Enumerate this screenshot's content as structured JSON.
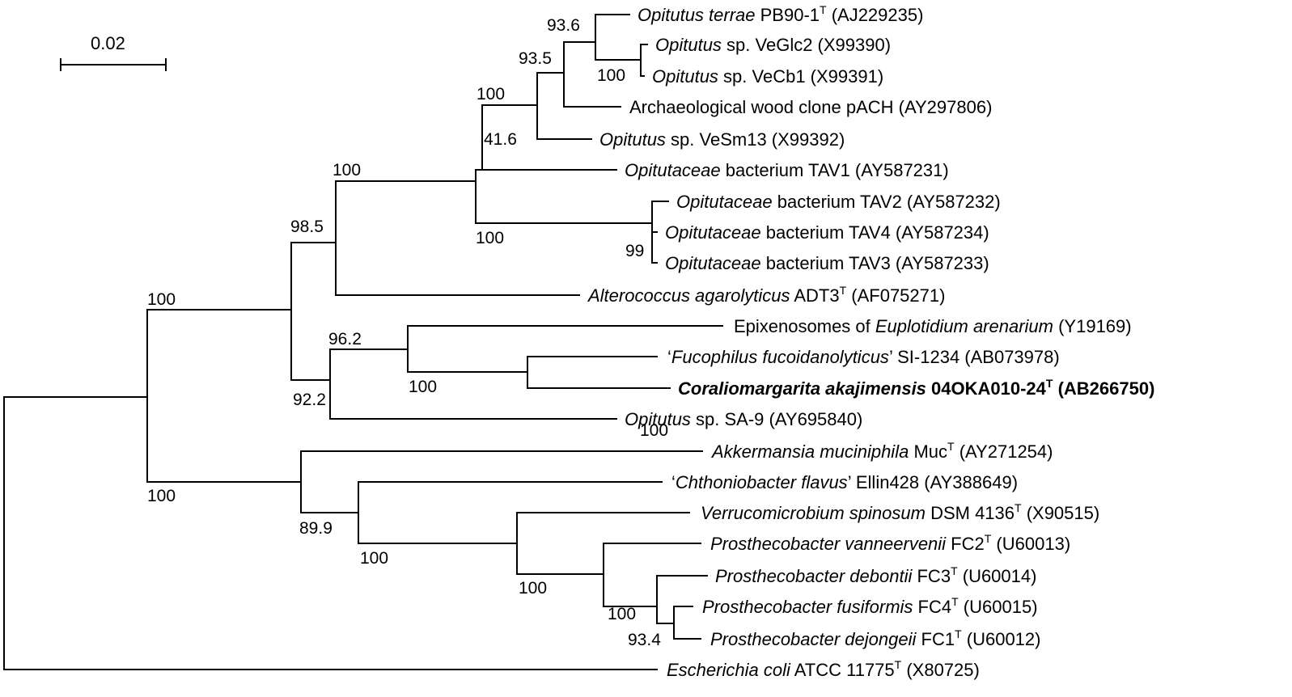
{
  "scale_bar": {
    "label": "0.02"
  },
  "taxa": [
    {
      "id": "t1",
      "segments": [
        {
          "t": "Opitutus terrae",
          "i": true
        },
        {
          "t": " PB90-1"
        },
        {
          "t": "T",
          "sup": true
        },
        {
          "t": " (AJ229235)"
        }
      ]
    },
    {
      "id": "t2",
      "segments": [
        {
          "t": "Opitutus",
          "i": true
        },
        {
          "t": " sp. VeGlc2 (X99390)"
        }
      ]
    },
    {
      "id": "t3",
      "segments": [
        {
          "t": "Opitutus",
          "i": true
        },
        {
          "t": " sp. VeCb1 (X99391)"
        }
      ]
    },
    {
      "id": "t4",
      "segments": [
        {
          "t": "Archaeological wood clone pACH (AY297806)"
        }
      ]
    },
    {
      "id": "t5",
      "segments": [
        {
          "t": "Opitutus",
          "i": true
        },
        {
          "t": " sp. VeSm13 (X99392)"
        }
      ]
    },
    {
      "id": "t6",
      "segments": [
        {
          "t": "Opitutaceae",
          "i": true
        },
        {
          "t": " bacterium TAV1 (AY587231)"
        }
      ]
    },
    {
      "id": "t7",
      "segments": [
        {
          "t": "Opitutaceae",
          "i": true
        },
        {
          "t": " bacterium TAV2 (AY587232)"
        }
      ]
    },
    {
      "id": "t8",
      "segments": [
        {
          "t": "Opitutaceae",
          "i": true
        },
        {
          "t": " bacterium TAV4 (AY587234)"
        }
      ]
    },
    {
      "id": "t9",
      "segments": [
        {
          "t": "Opitutaceae",
          "i": true
        },
        {
          "t": " bacterium TAV3 (AY587233)"
        }
      ]
    },
    {
      "id": "t10",
      "segments": [
        {
          "t": "Alterococcus agarolyticus",
          "i": true
        },
        {
          "t": " ADT3"
        },
        {
          "t": "T",
          "sup": true
        },
        {
          "t": " (AF075271)"
        }
      ]
    },
    {
      "id": "t11",
      "segments": [
        {
          "t": "Epixenosomes of "
        },
        {
          "t": "Euplotidium arenarium",
          "i": true
        },
        {
          "t": " (Y19169)"
        }
      ]
    },
    {
      "id": "t12",
      "segments": [
        {
          "t": "‘"
        },
        {
          "t": "Fucophilus fucoidanolyticus",
          "i": true
        },
        {
          "t": "’ SI-1234 (AB073978)"
        }
      ]
    },
    {
      "id": "t13",
      "bold": true,
      "segments": [
        {
          "t": "Coraliomargarita akajimensis",
          "i": true
        },
        {
          "t": " 04OKA010-24"
        },
        {
          "t": "T",
          "sup": true
        },
        {
          "t": " (AB266750)"
        }
      ]
    },
    {
      "id": "t14",
      "segments": [
        {
          "t": "Opitutus",
          "i": true
        },
        {
          "t": " sp. SA-9 (AY695840)"
        }
      ]
    },
    {
      "id": "t15",
      "segments": [
        {
          "t": "Akkermansia muciniphila",
          "i": true
        },
        {
          "t": " Muc"
        },
        {
          "t": "T",
          "sup": true
        },
        {
          "t": " (AY271254)"
        }
      ]
    },
    {
      "id": "t16",
      "segments": [
        {
          "t": "‘"
        },
        {
          "t": "Chthoniobacter flavus",
          "i": true
        },
        {
          "t": "’ Ellin428 (AY388649)"
        }
      ]
    },
    {
      "id": "t17",
      "segments": [
        {
          "t": "Verrucomicrobium spinosum",
          "i": true
        },
        {
          "t": " DSM 4136"
        },
        {
          "t": "T",
          "sup": true
        },
        {
          "t": " (X90515)"
        }
      ]
    },
    {
      "id": "t18",
      "segments": [
        {
          "t": "Prosthecobacter vanneervenii",
          "i": true
        },
        {
          "t": " FC2"
        },
        {
          "t": "T",
          "sup": true
        },
        {
          "t": " (U60013)"
        }
      ]
    },
    {
      "id": "t19",
      "segments": [
        {
          "t": "Prosthecobacter debontii",
          "i": true
        },
        {
          "t": " FC3"
        },
        {
          "t": "T",
          "sup": true
        },
        {
          "t": " (U60014)"
        }
      ]
    },
    {
      "id": "t20",
      "segments": [
        {
          "t": "Prosthecobacter fusiformis",
          "i": true
        },
        {
          "t": " FC4"
        },
        {
          "t": "T",
          "sup": true
        },
        {
          "t": " (U60015)"
        }
      ]
    },
    {
      "id": "t21",
      "segments": [
        {
          "t": "Prosthecobacter dejongeii",
          "i": true
        },
        {
          "t": " FC1"
        },
        {
          "t": "T",
          "sup": true
        },
        {
          "t": " (U60012)"
        }
      ]
    },
    {
      "id": "t22",
      "segments": [
        {
          "t": "Escherichia coli",
          "i": true
        },
        {
          "t": " ATCC 11775"
        },
        {
          "t": "T",
          "sup": true
        },
        {
          "t": " (X80725)"
        }
      ]
    }
  ],
  "bootstrap": [
    "93.6",
    "93.5",
    "100",
    "100",
    "41.6",
    "100",
    "100",
    "99",
    "98.5",
    "100",
    "96.2",
    "100",
    "92.2",
    "100",
    "100",
    "89.9",
    "100",
    "100",
    "100",
    "93.4"
  ]
}
